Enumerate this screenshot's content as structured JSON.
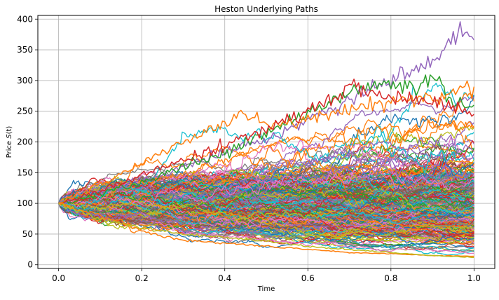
{
  "chart_data": {
    "type": "line",
    "title": "Heston Underlying Paths",
    "xlabel": "Time",
    "ylabel_prefix": "Price ",
    "ylabel_symbol": "S",
    "ylabel_arg": "(t)",
    "xlim": [
      -0.05,
      1.05
    ],
    "ylim": [
      -6,
      406
    ],
    "xticks": [
      0.0,
      0.2,
      0.4,
      0.6,
      0.8,
      1.0
    ],
    "xtick_labels": [
      "0.0",
      "0.2",
      "0.4",
      "0.6",
      "0.8",
      "1.0"
    ],
    "yticks": [
      0,
      50,
      100,
      150,
      200,
      250,
      300,
      350,
      400
    ],
    "ytick_labels": [
      "0",
      "50",
      "100",
      "150",
      "200",
      "250",
      "300",
      "350",
      "400"
    ],
    "grid": true,
    "legend": "none",
    "initial_price": 100,
    "num_steps": 252,
    "series_colors": [
      "#1f77b4",
      "#ff7f0e",
      "#2ca02c",
      "#d62728",
      "#9467bd",
      "#8c564b",
      "#e377c2",
      "#7f7f7f",
      "#bcbd22",
      "#17becf"
    ],
    "highlighted_paths": [
      {
        "color": "#9467bd",
        "x": [
          0.0,
          0.1,
          0.2,
          0.3,
          0.4,
          0.5,
          0.6,
          0.7,
          0.75,
          0.8,
          0.85,
          0.9,
          0.95,
          0.98,
          1.0
        ],
        "values": [
          100,
          118,
          138,
          158,
          182,
          205,
          235,
          270,
          285,
          300,
          315,
          330,
          370,
          385,
          366
        ]
      },
      {
        "color": "#2ca02c",
        "x": [
          0.0,
          0.1,
          0.2,
          0.3,
          0.4,
          0.5,
          0.6,
          0.7,
          0.75,
          0.8,
          0.85,
          0.9,
          0.95,
          1.0
        ],
        "values": [
          100,
          115,
          135,
          160,
          180,
          215,
          245,
          280,
          290,
          298,
          285,
          303,
          265,
          260
        ]
      },
      {
        "color": "#ff7f0e",
        "x": [
          0.0,
          0.1,
          0.2,
          0.3,
          0.4,
          0.45,
          0.5,
          0.6,
          0.7,
          0.8,
          0.9,
          1.0
        ],
        "values": [
          100,
          130,
          165,
          200,
          230,
          245,
          225,
          240,
          255,
          265,
          270,
          290
        ]
      },
      {
        "color": "#d62728",
        "x": [
          0.0,
          0.1,
          0.2,
          0.3,
          0.4,
          0.5,
          0.6,
          0.7,
          0.8,
          0.9,
          1.0
        ],
        "values": [
          100,
          120,
          145,
          170,
          195,
          220,
          250,
          288,
          270,
          265,
          245
        ]
      },
      {
        "color": "#ff7f0e",
        "x": [
          0.0,
          0.1,
          0.2,
          0.3,
          0.4,
          0.5,
          0.6,
          0.7,
          0.8,
          0.9,
          1.0
        ],
        "values": [
          100,
          80,
          55,
          40,
          35,
          30,
          25,
          20,
          18,
          15,
          14
        ]
      },
      {
        "color": "#bcbd22",
        "x": [
          0.0,
          0.1,
          0.2,
          0.3,
          0.4,
          0.5,
          0.6,
          0.7,
          0.8,
          0.9,
          1.0
        ],
        "values": [
          100,
          75,
          60,
          50,
          45,
          38,
          30,
          25,
          20,
          15,
          12
        ]
      }
    ]
  }
}
